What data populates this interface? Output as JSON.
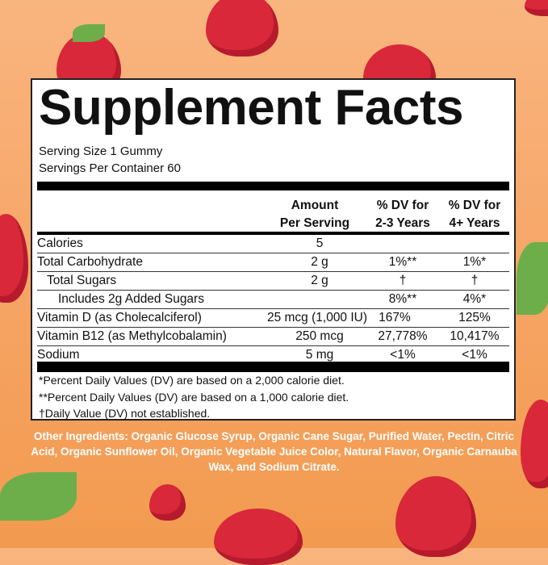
{
  "title": "Supplement Facts",
  "serving_size": "Serving Size 1 Gummy",
  "servings_per_container": "Servings Per Container 60",
  "headers": {
    "amount_1": "Amount",
    "amount_2": "Per Serving",
    "dv23_1": "% DV for",
    "dv23_2": "2-3 Years",
    "dv4_1": "% DV for",
    "dv4_2": "4+ Years"
  },
  "rows": [
    {
      "name": "Calories",
      "amount": "5",
      "dv23": "",
      "dv4": ""
    },
    {
      "name": "Total Carbohydrate",
      "amount": "2 g",
      "dv23": "1%**",
      "dv4": "1%*"
    },
    {
      "name": "Total Sugars",
      "amount": "2 g",
      "dv23": "†",
      "dv4": "†"
    },
    {
      "name": "Includes 2g Added Sugars",
      "amount": "",
      "dv23": "8%**",
      "dv4": "4%*"
    },
    {
      "name": "Vitamin D (as Cholecalciferol)",
      "amount": "25 mcg (1,000 IU)",
      "dv23": "167%",
      "dv4": "125%"
    },
    {
      "name": "Vitamin B12 (as Methylcobalamin)",
      "amount": "250 mcg",
      "dv23": "27,778%",
      "dv4": "10,417%"
    },
    {
      "name": "Sodium",
      "amount": "5 mg",
      "dv23": "<1%",
      "dv4": "<1%"
    }
  ],
  "footnotes": [
    "*Percent Daily Values (DV) are based on a 2,000 calorie diet.",
    "**Percent Daily Values (DV) are based on a 1,000 calorie diet.",
    "†Daily Value (DV) not established."
  ],
  "other_ingredients": "Other Ingredients: Organic Glucose Syrup, Organic Cane Sugar, Purified Water, Pectin, Citric Acid, Organic Sunflower Oil, Organic Vegetable Juice Color, Natural Flavor, Organic Carnauba Wax, and Sodium Citrate.",
  "colors": {
    "background": "#f6a464",
    "berry": "#d8283a",
    "leaf": "#6dae4a"
  }
}
